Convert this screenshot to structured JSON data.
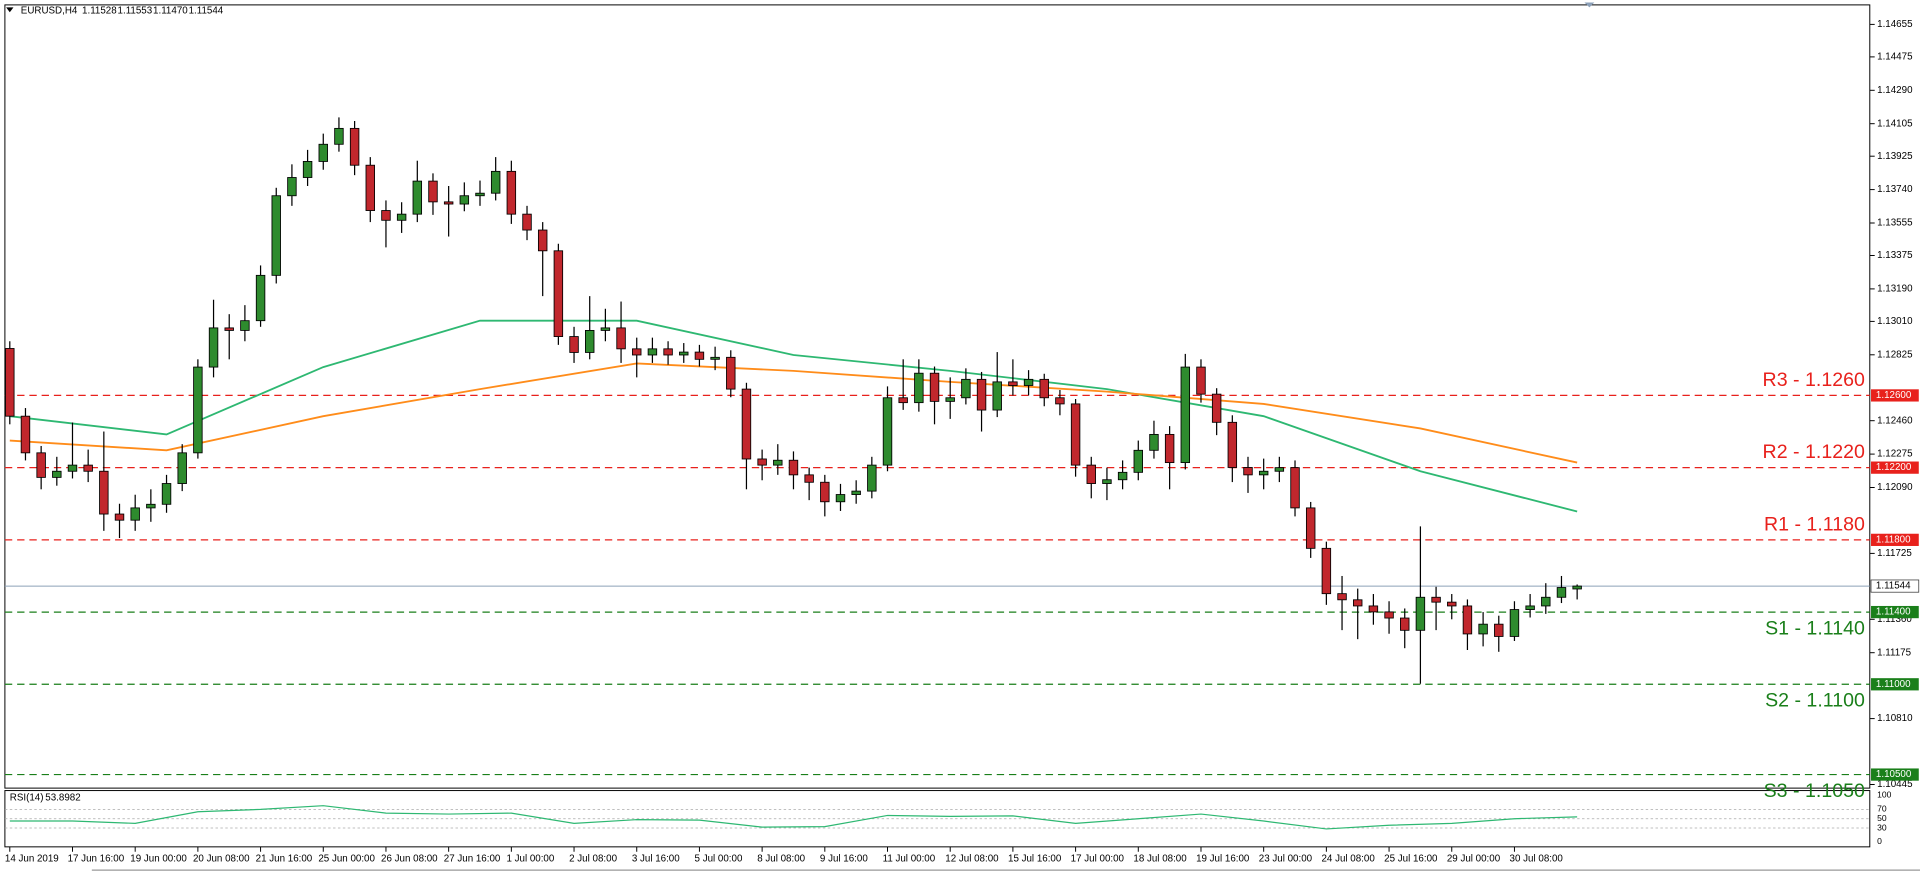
{
  "chart_data": {
    "type": "candlestick",
    "symbol": "EURUSD,H4",
    "quote_labels": [
      "1.11528",
      "1.11553",
      "1.11470",
      "1.11544"
    ],
    "up_color": "#2e8b2e",
    "down_color": "#c1272d",
    "categories": [
      "14 Jun 2019",
      null,
      null,
      null,
      "17 Jun 16:00",
      null,
      null,
      null,
      "19 Jun 00:00",
      null,
      null,
      null,
      "20 Jun 08:00",
      null,
      null,
      null,
      "21 Jun 16:00",
      null,
      null,
      null,
      "25 Jun 00:00",
      null,
      null,
      null,
      "26 Jun 08:00",
      null,
      null,
      null,
      "27 Jun 16:00",
      null,
      null,
      null,
      "1 Jul 00:00",
      null,
      null,
      null,
      "2 Jul 08:00",
      null,
      null,
      null,
      "3 Jul 16:00",
      null,
      null,
      null,
      "5 Jul 00:00",
      null,
      null,
      null,
      "8 Jul 08:00",
      null,
      null,
      null,
      "9 Jul 16:00",
      null,
      null,
      null,
      "11 Jul 00:00",
      null,
      null,
      null,
      "12 Jul 08:00",
      null,
      null,
      null,
      "15 Jul 16:00",
      null,
      null,
      null,
      "17 Jul 00:00",
      null,
      null,
      null,
      "18 Jul 08:00",
      null,
      null,
      null,
      "19 Jul 16:00",
      null,
      null,
      null,
      "23 Jul 00:00",
      null,
      null,
      null,
      "24 Jul 08:00",
      null,
      null,
      null,
      "25 Jul 16:00",
      null,
      null,
      null,
      "29 Jul 00:00",
      null,
      null,
      null,
      "30 Jul 08:00",
      null,
      null,
      null,
      null
    ],
    "open": [
      1.1286,
      1.12485,
      1.12282,
      1.12146,
      1.1218,
      1.12214,
      1.1218,
      1.11943,
      1.11909,
      1.11977,
      1.11997,
      1.12112,
      1.12282,
      1.12757,
      1.12974,
      1.1296,
      1.13014,
      1.13265,
      1.13706,
      1.13807,
      1.13896,
      1.13991,
      1.14079,
      1.13875,
      1.13624,
      1.1357,
      1.13604,
      1.13787,
      1.13672,
      1.1366,
      1.13706,
      1.1372,
      1.13841,
      1.13604,
      1.13516,
      1.13401,
      1.12926,
      1.12838,
      1.1296,
      1.12974,
      1.12858,
      1.12824,
      1.12858,
      1.12824,
      1.1284,
      1.128,
      1.12811,
      1.12635,
      1.12248,
      1.12214,
      1.12241,
      1.1216,
      1.12119,
      1.12011,
      1.12051,
      1.1207,
      1.12214,
      1.12587,
      1.1256,
      1.12723,
      1.12567,
      1.12587,
      1.12689,
      1.12519,
      1.12675,
      1.12655,
      1.12689,
      1.12587,
      1.12553,
      1.12214,
      1.12112,
      1.12133,
      1.12174,
      1.12296,
      1.12384,
      1.12228,
      1.12757,
      1.12607,
      1.12451,
      1.12201,
      1.1216,
      1.1218,
      1.122,
      1.11977,
      1.11753,
      1.11502,
      1.11468,
      1.11434,
      1.11401,
      1.11367,
      1.11299,
      1.11482,
      1.11455,
      1.11434,
      1.11279,
      1.11333,
      1.11265,
      1.11414,
      1.11434,
      1.11482,
      1.11528
    ],
    "high": [
      1.129,
      1.1253,
      1.1232,
      1.1226,
      1.1245,
      1.123,
      1.124,
      1.12,
      1.1205,
      1.1208,
      1.1216,
      1.1233,
      1.128,
      1.1313,
      1.1305,
      1.131,
      1.1332,
      1.1375,
      1.1388,
      1.1396,
      1.1405,
      1.1414,
      1.1412,
      1.1392,
      1.1368,
      1.1367,
      1.139,
      1.1383,
      1.1376,
      1.1378,
      1.1379,
      1.1392,
      1.139,
      1.1365,
      1.1356,
      1.1344,
      1.1298,
      1.1315,
      1.1308,
      1.1312,
      1.1292,
      1.1292,
      1.129,
      1.1289,
      1.1288,
      1.1287,
      1.1285,
      1.1267,
      1.123,
      1.1233,
      1.1229,
      1.122,
      1.1216,
      1.1211,
      1.1213,
      1.1226,
      1.1265,
      1.128,
      1.128,
      1.1276,
      1.127,
      1.1275,
      1.1273,
      1.1284,
      1.128,
      1.1274,
      1.1272,
      1.1263,
      1.1258,
      1.1226,
      1.122,
      1.1224,
      1.1235,
      1.1246,
      1.1243,
      1.1283,
      1.128,
      1.1264,
      1.1249,
      1.1226,
      1.1225,
      1.1226,
      1.1224,
      1.1201,
      1.1179,
      1.116,
      1.1153,
      1.115,
      1.1146,
      1.1142,
      1.11875,
      1.1154,
      1.115,
      1.1147,
      1.114,
      1.1138,
      1.1146,
      1.115,
      1.1156,
      1.116,
      1.11553
    ],
    "low": [
      1.1244,
      1.1224,
      1.1208,
      1.121,
      1.1214,
      1.1212,
      1.1185,
      1.1181,
      1.1185,
      1.119,
      1.1195,
      1.1207,
      1.1225,
      1.127,
      1.128,
      1.129,
      1.1298,
      1.1322,
      1.1365,
      1.1376,
      1.1385,
      1.1395,
      1.1382,
      1.1356,
      1.1342,
      1.135,
      1.1356,
      1.136,
      1.1348,
      1.1362,
      1.1365,
      1.1368,
      1.1355,
      1.1346,
      1.1315,
      1.1288,
      1.1278,
      1.128,
      1.129,
      1.1278,
      1.127,
      1.1278,
      1.1277,
      1.1278,
      1.1276,
      1.1274,
      1.1259,
      1.1208,
      1.1213,
      1.1216,
      1.1208,
      1.1202,
      1.1193,
      1.1196,
      1.12,
      1.1203,
      1.1218,
      1.1252,
      1.1251,
      1.1244,
      1.1247,
      1.1255,
      1.124,
      1.1248,
      1.126,
      1.126,
      1.1254,
      1.1249,
      1.1215,
      1.1203,
      1.1202,
      1.1208,
      1.1213,
      1.1225,
      1.1208,
      1.1219,
      1.1256,
      1.1238,
      1.1212,
      1.1206,
      1.1208,
      1.1212,
      1.1193,
      1.117,
      1.1144,
      1.113,
      1.1125,
      1.1133,
      1.1128,
      1.112,
      1.11003,
      1.113,
      1.1136,
      1.1119,
      1.1121,
      1.1118,
      1.1124,
      1.1137,
      1.1139,
      1.1145,
      1.1147
    ],
    "close": [
      1.12485,
      1.12282,
      1.12146,
      1.1218,
      1.12214,
      1.1218,
      1.11943,
      1.11909,
      1.11977,
      1.11997,
      1.12112,
      1.12282,
      1.12757,
      1.12974,
      1.1296,
      1.13014,
      1.13265,
      1.13706,
      1.13807,
      1.13896,
      1.13991,
      1.14079,
      1.13875,
      1.13624,
      1.1357,
      1.13604,
      1.13787,
      1.13672,
      1.1366,
      1.13706,
      1.1372,
      1.13841,
      1.13604,
      1.13516,
      1.13401,
      1.12926,
      1.12838,
      1.1296,
      1.12974,
      1.12858,
      1.12824,
      1.12858,
      1.12824,
      1.1284,
      1.128,
      1.12811,
      1.12635,
      1.12248,
      1.12214,
      1.12241,
      1.1216,
      1.12119,
      1.12011,
      1.12051,
      1.1207,
      1.12214,
      1.12587,
      1.1256,
      1.12723,
      1.12567,
      1.12587,
      1.12689,
      1.12519,
      1.12675,
      1.12655,
      1.12689,
      1.12587,
      1.12553,
      1.12214,
      1.12112,
      1.12133,
      1.12174,
      1.12296,
      1.12384,
      1.12228,
      1.12757,
      1.12607,
      1.12451,
      1.12201,
      1.1216,
      1.1218,
      1.122,
      1.11977,
      1.11753,
      1.11502,
      1.11468,
      1.11434,
      1.11401,
      1.11367,
      1.11299,
      1.11482,
      1.11455,
      1.11434,
      1.11279,
      1.11333,
      1.11265,
      1.11414,
      1.11434,
      1.11482,
      1.11536,
      1.11544
    ],
    "indicators": [
      {
        "color": "#2eb872",
        "x": [
          0,
          10,
          20,
          30,
          40,
          50,
          60,
          70,
          80,
          90,
          100
        ],
        "values": [
          1.12485,
          1.12384,
          1.12757,
          1.13014,
          1.13014,
          1.12824,
          1.12736,
          1.12635,
          1.12485,
          1.1218,
          1.11957
        ]
      },
      {
        "color": "#ff8c1a",
        "x": [
          0,
          10,
          20,
          30,
          40,
          50,
          60,
          70,
          80,
          90,
          100
        ],
        "values": [
          1.1235,
          1.12296,
          1.12485,
          1.12635,
          1.12777,
          1.12736,
          1.12675,
          1.12621,
          1.12553,
          1.12417,
          1.12228
        ]
      }
    ],
    "ylim": [
      1.10425,
      1.14763
    ],
    "yticks": [
      1.14655,
      1.14475,
      {
        "value": 1.1429,
        "label": "1.14290"
      },
      1.14105,
      1.13925,
      {
        "value": 1.1374,
        "label": "1.13740"
      },
      1.13555,
      1.13375,
      {
        "value": 1.1319,
        "label": "1.13190"
      },
      {
        "value": 1.1301,
        "label": "1.13010"
      },
      1.12825,
      {
        "value": 1.1246,
        "label": "1.12460"
      },
      1.12275,
      {
        "value": 1.1209,
        "label": "1.12090"
      },
      1.11725,
      {
        "value": 1.1136,
        "label": "1.11360"
      },
      1.11175,
      {
        "value": 1.1081,
        "label": "1.10810"
      },
      1.10445
    ],
    "levels": [
      {
        "name": "R3 - 1.1260",
        "value": 1.126,
        "value_label": "1.12600",
        "color": "#e8211c"
      },
      {
        "name": "R2 - 1.1220",
        "value": 1.122,
        "value_label": "1.12200",
        "color": "#e8211c"
      },
      {
        "name": "R1 - 1.1180",
        "value": 1.118,
        "value_label": "1.11800",
        "color": "#e8211c"
      },
      {
        "name": "S1 - 1.1140",
        "value": 1.114,
        "value_label": "1.11400",
        "color": "#1a7f1a"
      },
      {
        "name": "S2 - 1.1100",
        "value": 1.11,
        "value_label": "1.11000",
        "color": "#1a7f1a"
      },
      {
        "name": "S3 - 1.1050",
        "value": 1.105,
        "value_label": "1.10500",
        "color": "#1a7f1a"
      }
    ],
    "current_price": 1.11544,
    "current_color": "#8ca0b8",
    "rsi": {
      "title": "RSI(14)",
      "color": "#2eb872",
      "ylim": [
        0,
        100
      ],
      "yticks": [
        100,
        70,
        50,
        30,
        0
      ],
      "x": [
        0,
        4,
        8,
        12,
        16,
        20,
        24,
        28,
        32,
        36,
        40,
        44,
        48,
        52,
        56,
        60,
        64,
        68,
        72,
        76,
        80,
        84,
        88,
        92,
        96,
        100
      ],
      "values": [
        45,
        45,
        40,
        65,
        70,
        78,
        62,
        60,
        62,
        40,
        48,
        47,
        32,
        33,
        57,
        55,
        56,
        40,
        50,
        60,
        45,
        28,
        36,
        40,
        50,
        53.8982
      ]
    }
  }
}
